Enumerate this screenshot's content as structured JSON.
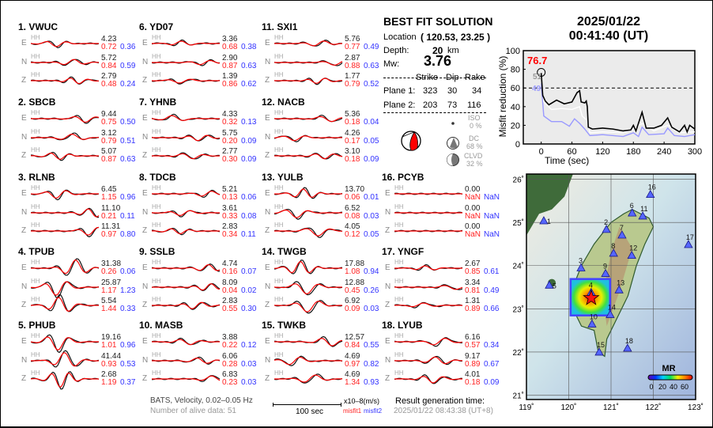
{
  "channel_label": "HH",
  "stations": [
    {
      "num": "1.",
      "code": "VWUC",
      "comps": [
        {
          "c": "E",
          "amp": "4.23",
          "m1": "0.72",
          "m2": "0.36"
        },
        {
          "c": "N",
          "amp": "5.72",
          "m1": "0.84",
          "m2": "0.59"
        },
        {
          "c": "Z",
          "amp": "2.79",
          "m1": "0.48",
          "m2": "0.24"
        }
      ]
    },
    {
      "num": "2.",
      "code": "SBCB",
      "comps": [
        {
          "c": "E",
          "amp": "9.44",
          "m1": "0.75",
          "m2": "0.50"
        },
        {
          "c": "N",
          "amp": "3.12",
          "m1": "0.79",
          "m2": "0.51"
        },
        {
          "c": "Z",
          "amp": "5.07",
          "m1": "0.87",
          "m2": "0.63"
        }
      ]
    },
    {
      "num": "3.",
      "code": "RLNB",
      "comps": [
        {
          "c": "E",
          "amp": "6.45",
          "m1": "1.15",
          "m2": "0.96"
        },
        {
          "c": "N",
          "amp": "11.10",
          "m1": "0.21",
          "m2": "0.11"
        },
        {
          "c": "Z",
          "amp": "11.31",
          "m1": "0.97",
          "m2": "0.80"
        }
      ]
    },
    {
      "num": "4.",
      "code": "TPUB",
      "comps": [
        {
          "c": "E",
          "amp": "31.38",
          "m1": "0.26",
          "m2": "0.06"
        },
        {
          "c": "N",
          "amp": "25.87",
          "m1": "1.17",
          "m2": "1.23"
        },
        {
          "c": "Z",
          "amp": "5.54",
          "m1": "1.44",
          "m2": "0.33"
        }
      ]
    },
    {
      "num": "5.",
      "code": "PHUB",
      "comps": [
        {
          "c": "E",
          "amp": "19.16",
          "m1": "1.01",
          "m2": "0.96"
        },
        {
          "c": "N",
          "amp": "41.44",
          "m1": "0.93",
          "m2": "0.53"
        },
        {
          "c": "Z",
          "amp": "2.68",
          "m1": "1.19",
          "m2": "0.37"
        }
      ]
    },
    {
      "num": "6.",
      "code": "YD07",
      "comps": [
        {
          "c": "E",
          "amp": "3.36",
          "m1": "0.68",
          "m2": "0.38"
        },
        {
          "c": "N",
          "amp": "2.90",
          "m1": "0.87",
          "m2": "0.63"
        },
        {
          "c": "Z",
          "amp": "1.39",
          "m1": "0.86",
          "m2": "0.62"
        }
      ]
    },
    {
      "num": "7.",
      "code": "YHNB",
      "comps": [
        {
          "c": "E",
          "amp": "4.33",
          "m1": "0.32",
          "m2": "0.13"
        },
        {
          "c": "N",
          "amp": "5.75",
          "m1": "0.20",
          "m2": "0.09"
        },
        {
          "c": "Z",
          "amp": "2.77",
          "m1": "0.30",
          "m2": "0.09"
        }
      ]
    },
    {
      "num": "8.",
      "code": "TDCB",
      "comps": [
        {
          "c": "E",
          "amp": "5.21",
          "m1": "0.13",
          "m2": "0.06"
        },
        {
          "c": "N",
          "amp": "3.61",
          "m1": "0.33",
          "m2": "0.08"
        },
        {
          "c": "Z",
          "amp": "2.83",
          "m1": "0.34",
          "m2": "0.11"
        }
      ]
    },
    {
      "num": "9.",
      "code": "SSLB",
      "comps": [
        {
          "c": "E",
          "amp": "4.74",
          "m1": "0.16",
          "m2": "0.07"
        },
        {
          "c": "N",
          "amp": "8.09",
          "m1": "0.04",
          "m2": "0.02"
        },
        {
          "c": "Z",
          "amp": "2.83",
          "m1": "0.55",
          "m2": "0.30"
        }
      ]
    },
    {
      "num": "10.",
      "code": "MASB",
      "comps": [
        {
          "c": "E",
          "amp": "3.88",
          "m1": "0.22",
          "m2": "0.12"
        },
        {
          "c": "N",
          "amp": "6.06",
          "m1": "0.28",
          "m2": "0.03"
        },
        {
          "c": "Z",
          "amp": "6.83",
          "m1": "0.23",
          "m2": "0.03"
        }
      ]
    },
    {
      "num": "11.",
      "code": "SXI1",
      "comps": [
        {
          "c": "E",
          "amp": "5.76",
          "m1": "0.77",
          "m2": "0.49"
        },
        {
          "c": "N",
          "amp": "2.87",
          "m1": "0.88",
          "m2": "0.63"
        },
        {
          "c": "Z",
          "amp": "1.77",
          "m1": "0.79",
          "m2": "0.52"
        }
      ]
    },
    {
      "num": "12.",
      "code": "NACB",
      "comps": [
        {
          "c": "E",
          "amp": "5.36",
          "m1": "0.18",
          "m2": "0.04"
        },
        {
          "c": "N",
          "amp": "4.26",
          "m1": "0.17",
          "m2": "0.05"
        },
        {
          "c": "Z",
          "amp": "3.10",
          "m1": "0.18",
          "m2": "0.09"
        }
      ]
    },
    {
      "num": "13.",
      "code": "YULB",
      "comps": [
        {
          "c": "E",
          "amp": "13.70",
          "m1": "0.06",
          "m2": "0.01"
        },
        {
          "c": "N",
          "amp": "6.52",
          "m1": "0.08",
          "m2": "0.03"
        },
        {
          "c": "Z",
          "amp": "4.05",
          "m1": "0.12",
          "m2": "0.05"
        }
      ]
    },
    {
      "num": "14.",
      "code": "TWGB",
      "comps": [
        {
          "c": "E",
          "amp": "17.88",
          "m1": "1.08",
          "m2": "0.94"
        },
        {
          "c": "N",
          "amp": "12.88",
          "m1": "0.45",
          "m2": "0.26"
        },
        {
          "c": "Z",
          "amp": "6.92",
          "m1": "0.09",
          "m2": "0.03"
        }
      ]
    },
    {
      "num": "15.",
      "code": "TWKB",
      "comps": [
        {
          "c": "E",
          "amp": "12.57",
          "m1": "0.84",
          "m2": "0.55"
        },
        {
          "c": "N",
          "amp": "4.69",
          "m1": "0.97",
          "m2": "0.82"
        },
        {
          "c": "Z",
          "amp": "4.69",
          "m1": "1.34",
          "m2": "0.93"
        }
      ]
    },
    {
      "num": "16.",
      "code": "PCYB",
      "comps": [
        {
          "c": "E",
          "amp": "0.00",
          "m1": "NaN",
          "m2": "NaN"
        },
        {
          "c": "N",
          "amp": "0.00",
          "m1": "NaN",
          "m2": "NaN"
        },
        {
          "c": "Z",
          "amp": "0.00",
          "m1": "NaN",
          "m2": "NaN"
        }
      ]
    },
    {
      "num": "17.",
      "code": "YNGF",
      "comps": [
        {
          "c": "E",
          "amp": "2.67",
          "m1": "0.85",
          "m2": "0.61"
        },
        {
          "c": "N",
          "amp": "3.34",
          "m1": "0.81",
          "m2": "0.49"
        },
        {
          "c": "Z",
          "amp": "1.31",
          "m1": "0.89",
          "m2": "0.66"
        }
      ]
    },
    {
      "num": "18.",
      "code": "LYUB",
      "comps": [
        {
          "c": "E",
          "amp": "6.16",
          "m1": "0.57",
          "m2": "0.34"
        },
        {
          "c": "N",
          "amp": "9.17",
          "m1": "0.89",
          "m2": "0.67"
        },
        {
          "c": "Z",
          "amp": "4.01",
          "m1": "0.18",
          "m2": "0.09"
        }
      ]
    }
  ],
  "best_fit": {
    "title": "BEST FIT SOLUTION",
    "location_label": "Location",
    "location_value": "( 120.53,  23.25 )",
    "depth_label": "Depth:",
    "depth_value": "20",
    "depth_unit": "km",
    "mw_label": "Mw:",
    "mw_value": "3.76",
    "headers": [
      "Strike",
      "Dip",
      "Rake"
    ],
    "planes": [
      {
        "label": "Plane 1:",
        "strike": "323",
        "dip": "30",
        "rake": "34"
      },
      {
        "label": "Plane 2:",
        "strike": "203",
        "dip": "73",
        "rake": "116"
      }
    ],
    "iso_label": "ISO",
    "iso_value": "0 %",
    "dc_label": "DC",
    "dc_value": "68 %",
    "clvd_label": "CLVD",
    "clvd_value": "32 %"
  },
  "footer": {
    "filter": "BATS, Velocity, 0.02–0.05 Hz",
    "alive": "Number of alive data: 51",
    "scale_label": "100 sec",
    "unit": "x10–8(m/s)",
    "misfit1": "misfit1",
    "misfit2": "misfit2",
    "result_label": "Result generation time:",
    "result_time": "2025/01/22 08:43:38 (UT+8)"
  },
  "header": {
    "date": "2025/01/22",
    "time": "00:41:40  (UT)"
  },
  "chart_data": {
    "type": "line",
    "xlabel": "Time (sec)",
    "ylabel": "Misfit reduction (%)",
    "xlim": [
      -35,
      300
    ],
    "ylim": [
      0,
      100
    ],
    "xticks": [
      "0",
      "60",
      "120",
      "180",
      "240",
      "300"
    ],
    "yticks": [
      "0",
      "20",
      "40",
      "60",
      "80",
      "100"
    ],
    "threshold": 60,
    "best_value": "76.7",
    "best_time": 0,
    "label_gray": "51",
    "label_blue": "49",
    "colors": {
      "black": "#000000",
      "white": "#ffffff",
      "blue": "#9999ff",
      "best": "#ff0000"
    },
    "series": [
      {
        "color": "black",
        "x": [
          0,
          3,
          8,
          15,
          30,
          45,
          60,
          70,
          75,
          78,
          85,
          88,
          90,
          92,
          100,
          120,
          140,
          160,
          175,
          180,
          185,
          197,
          205,
          220,
          235,
          247,
          255,
          270,
          280,
          285,
          290,
          300
        ],
        "y": [
          76,
          52,
          46,
          42,
          47,
          43,
          45,
          55,
          57,
          45,
          44,
          46,
          40,
          18,
          16,
          17,
          16,
          14,
          15,
          20,
          14,
          34,
          17,
          17,
          20,
          28,
          18,
          13,
          20,
          13,
          20,
          16
        ]
      },
      {
        "color": "white",
        "x": [
          0,
          5,
          20,
          40,
          60,
          75,
          80,
          90,
          95,
          120,
          160,
          180,
          197,
          220,
          247,
          270,
          300
        ],
        "y": [
          70,
          45,
          37,
          38,
          37,
          40,
          30,
          25,
          12,
          13,
          12,
          16,
          22,
          14,
          20,
          12,
          13
        ]
      },
      {
        "color": "blue",
        "x": [
          0,
          5,
          20,
          40,
          55,
          65,
          75,
          85,
          95,
          120,
          160,
          180,
          190,
          197,
          210,
          240,
          247,
          260,
          280,
          300
        ],
        "y": [
          65,
          30,
          24,
          24,
          19,
          27,
          22,
          16,
          9,
          10,
          8,
          12,
          8,
          18,
          10,
          11,
          17,
          9,
          8,
          10
        ]
      }
    ]
  },
  "map": {
    "lon_ticks": [
      "119˚",
      "120˚",
      "121˚",
      "122˚",
      "123˚"
    ],
    "lat_ticks": [
      "21˚",
      "22˚",
      "23˚",
      "24˚",
      "25˚",
      "26˚"
    ],
    "epicenter": {
      "lon": 120.53,
      "lat": 23.25
    },
    "colorbar_title": "MR",
    "colorbar_ticks": [
      "0",
      "20",
      "40",
      "60"
    ],
    "stations": [
      {
        "n": "1",
        "lon": 119.41,
        "lat": 25.04
      },
      {
        "n": "2",
        "lon": 120.89,
        "lat": 24.84
      },
      {
        "n": "3",
        "lon": 120.29,
        "lat": 23.95
      },
      {
        "n": "4",
        "lon": 120.53,
        "lat": 23.38
      },
      {
        "n": "5",
        "lon": 119.54,
        "lat": 23.55
      },
      {
        "n": "6",
        "lon": 121.5,
        "lat": 25.22
      },
      {
        "n": "7",
        "lon": 121.26,
        "lat": 24.71
      },
      {
        "n": "8",
        "lon": 121.06,
        "lat": 24.29
      },
      {
        "n": "9",
        "lon": 120.87,
        "lat": 23.82
      },
      {
        "n": "10",
        "lon": 120.55,
        "lat": 22.65
      },
      {
        "n": "11",
        "lon": 121.75,
        "lat": 25.15
      },
      {
        "n": "12",
        "lon": 121.49,
        "lat": 24.24
      },
      {
        "n": "13",
        "lon": 121.19,
        "lat": 23.44
      },
      {
        "n": "14",
        "lon": 120.98,
        "lat": 22.87
      },
      {
        "n": "15",
        "lon": 120.72,
        "lat": 22.0
      },
      {
        "n": "16",
        "lon": 121.93,
        "lat": 25.65
      },
      {
        "n": "17",
        "lon": 122.83,
        "lat": 24.49
      },
      {
        "n": "18",
        "lon": 121.39,
        "lat": 22.09
      }
    ]
  }
}
